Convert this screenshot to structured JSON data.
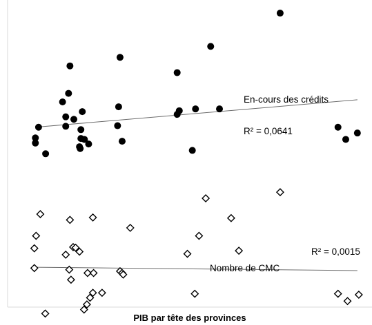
{
  "chart_data": {
    "type": "scatter",
    "xlabel": "PIB par tête des provinces",
    "ylabel": "",
    "xlim": [
      0,
      100
    ],
    "ylim": [
      0,
      100
    ],
    "grid": false,
    "series": [
      {
        "name": "En-cours des crédits",
        "marker": "filled-circle",
        "color": "#000000",
        "points": [
          {
            "x": 76.5,
            "y": 96.6
          },
          {
            "x": 56.8,
            "y": 85.7
          },
          {
            "x": 31.1,
            "y": 82.1
          },
          {
            "x": 16.9,
            "y": 79.3
          },
          {
            "x": 47.3,
            "y": 77.1
          },
          {
            "x": 16.5,
            "y": 70.3
          },
          {
            "x": 14.8,
            "y": 67.5
          },
          {
            "x": 30.7,
            "y": 65.9
          },
          {
            "x": 47.9,
            "y": 64.6
          },
          {
            "x": 52.5,
            "y": 65.2
          },
          {
            "x": 59.3,
            "y": 65.2
          },
          {
            "x": 20.4,
            "y": 64.3
          },
          {
            "x": 15.7,
            "y": 62.6
          },
          {
            "x": 47.3,
            "y": 63.4
          },
          {
            "x": 18.0,
            "y": 61.8
          },
          {
            "x": 15.7,
            "y": 59.5
          },
          {
            "x": 8.0,
            "y": 59.2
          },
          {
            "x": 20.0,
            "y": 58.4
          },
          {
            "x": 30.4,
            "y": 59.7
          },
          {
            "x": 7.1,
            "y": 55.7
          },
          {
            "x": 20.0,
            "y": 55.5
          },
          {
            "x": 21.0,
            "y": 55.2
          },
          {
            "x": 31.7,
            "y": 54.6
          },
          {
            "x": 7.1,
            "y": 54.0
          },
          {
            "x": 22.2,
            "y": 53.7
          },
          {
            "x": 19.6,
            "y": 52.8
          },
          {
            "x": 19.8,
            "y": 52.2
          },
          {
            "x": 51.6,
            "y": 51.6
          },
          {
            "x": 10.0,
            "y": 50.5
          },
          {
            "x": 98.4,
            "y": 57.3
          },
          {
            "x": 92.9,
            "y": 59.2
          },
          {
            "x": 95.1,
            "y": 55.2
          }
        ],
        "trendline": {
          "x": [
            7.1,
            98.4
          ],
          "y": [
            59.2,
            68.2
          ]
        },
        "r2_label": "R² = 0,0641"
      },
      {
        "name": "Nombre de CMC",
        "marker": "hollow-diamond",
        "color": "#000000",
        "points": [
          {
            "x": 76.5,
            "y": 37.9
          },
          {
            "x": 55.4,
            "y": 35.9
          },
          {
            "x": 8.5,
            "y": 30.7
          },
          {
            "x": 16.9,
            "y": 28.8
          },
          {
            "x": 23.4,
            "y": 29.6
          },
          {
            "x": 62.6,
            "y": 29.4
          },
          {
            "x": 34.0,
            "y": 26.2
          },
          {
            "x": 7.3,
            "y": 23.6
          },
          {
            "x": 53.5,
            "y": 23.6
          },
          {
            "x": 6.8,
            "y": 19.5
          },
          {
            "x": 17.8,
            "y": 19.9
          },
          {
            "x": 18.5,
            "y": 19.7
          },
          {
            "x": 19.6,
            "y": 18.4
          },
          {
            "x": 15.7,
            "y": 17.4
          },
          {
            "x": 50.2,
            "y": 17.7
          },
          {
            "x": 64.8,
            "y": 18.7
          },
          {
            "x": 6.8,
            "y": 13.0
          },
          {
            "x": 16.7,
            "y": 12.5
          },
          {
            "x": 21.9,
            "y": 11.4
          },
          {
            "x": 23.6,
            "y": 11.4
          },
          {
            "x": 31.1,
            "y": 12.0
          },
          {
            "x": 31.7,
            "y": 11.4
          },
          {
            "x": 32.0,
            "y": 10.9
          },
          {
            "x": 17.2,
            "y": 9.2
          },
          {
            "x": 23.4,
            "y": 4.9
          },
          {
            "x": 26.0,
            "y": 4.9
          },
          {
            "x": 52.3,
            "y": 4.6
          },
          {
            "x": 22.6,
            "y": 3.3
          },
          {
            "x": 21.7,
            "y": 1.1
          },
          {
            "x": 20.9,
            "y": -0.6
          },
          {
            "x": 9.9,
            "y": -1.9
          },
          {
            "x": 92.9,
            "y": 4.6
          },
          {
            "x": 98.8,
            "y": 4.3
          },
          {
            "x": 95.6,
            "y": 2.2
          }
        ],
        "trendline": {
          "x": [
            7.1,
            98.4
          ],
          "y": [
            13.3,
            12.2
          ]
        },
        "r2_label": "R² = 0,0015"
      }
    ]
  }
}
